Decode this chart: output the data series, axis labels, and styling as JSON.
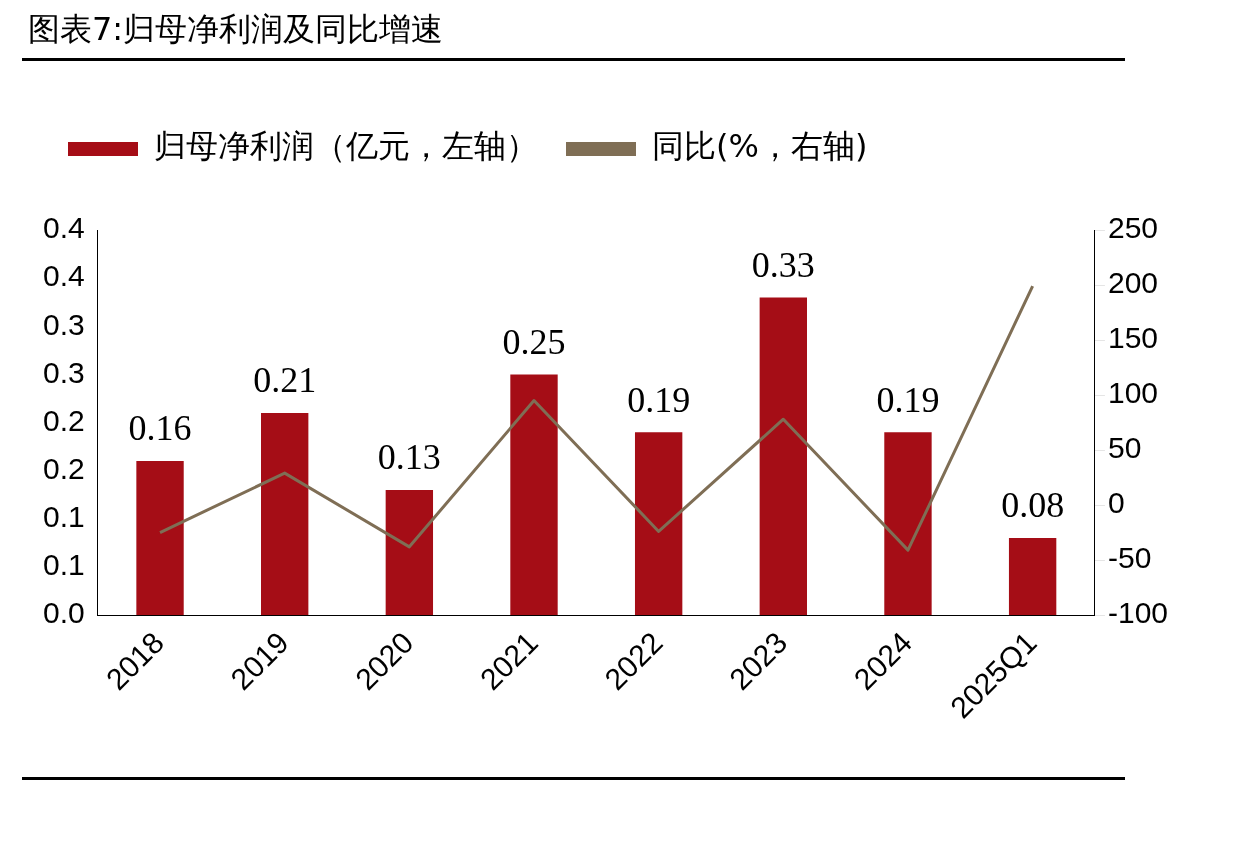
{
  "chart_data": {
    "type": "bar",
    "title": "图表7:归母净利润及同比增速",
    "categories": [
      "2018",
      "2019",
      "2020",
      "2021",
      "2022",
      "2023",
      "2024",
      "2025Q1"
    ],
    "series": [
      {
        "name": "归母净利润（亿元，左轴）",
        "color": "#a50d16",
        "values": [
          0.16,
          0.21,
          0.13,
          0.25,
          0.19,
          0.33,
          0.19,
          0.08
        ],
        "value_labels": [
          "0.16",
          "0.21",
          "0.13",
          "0.25",
          "0.19",
          "0.33",
          "0.19",
          "0.08"
        ]
      },
      {
        "name": "同比(%，右轴)",
        "type": "line",
        "axis": "y2",
        "color": "#7f6e55",
        "values": [
          -25,
          29,
          -38,
          95,
          -24,
          78,
          -41,
          199
        ]
      }
    ],
    "ylim": [
      0,
      0.4
    ],
    "yticks": [
      {
        "value": 0,
        "label": "0.0"
      },
      {
        "value": 0.05,
        "label": "0.1"
      },
      0.1,
      {
        "value": 0.15,
        "label": "0.2"
      },
      0.2,
      {
        "value": 0.25,
        "label": "0.3"
      },
      0.3,
      {
        "value": 0.35,
        "label": "0.4"
      },
      0.4
    ],
    "y2lim": [
      -100,
      250
    ],
    "y2ticks": [
      -100,
      -50,
      0,
      50,
      100,
      150,
      200,
      250
    ],
    "legend": "top left",
    "grid": false,
    "marker": "none",
    "line_style": "solid"
  }
}
